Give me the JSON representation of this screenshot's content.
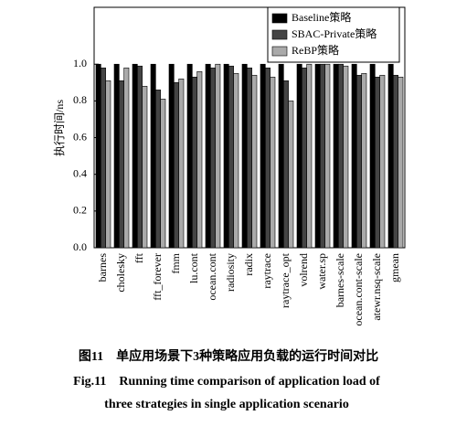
{
  "chart_data": {
    "type": "bar",
    "y_label": "执行时间/ns",
    "categories": [
      "barnes",
      "cholesky",
      "fft",
      "fft_forever",
      "fmm",
      "lu.cont",
      "ocean.cont",
      "radiosity",
      "radix",
      "raytrace",
      "raytrace_opt",
      "volrend",
      "water.sp",
      "barnes-scale",
      "ocean.cont-scale",
      "atewr.nsq-scale",
      "gmean"
    ],
    "series": [
      {
        "name": "Baseline策略",
        "color": "#000000",
        "values": [
          1,
          1,
          1,
          1,
          1,
          1,
          1,
          1,
          1,
          1,
          1,
          1,
          1,
          1,
          1,
          1,
          1
        ]
      },
      {
        "name": "SBAC-Private策略",
        "color": "#444444",
        "values": [
          0.98,
          0.91,
          0.99,
          0.86,
          0.9,
          0.93,
          0.98,
          0.99,
          0.98,
          0.98,
          0.91,
          0.98,
          1,
          1,
          0.94,
          0.93,
          0.94
        ]
      },
      {
        "name": "ReBP策略",
        "color": "#aaaaaa",
        "values": [
          0.91,
          0.98,
          0.88,
          0.81,
          0.92,
          0.96,
          1,
          0.95,
          0.94,
          0.93,
          0.8,
          1,
          1,
          0.99,
          0.95,
          0.94,
          0.93
        ]
      }
    ],
    "ylim": [
      0,
      1.31
    ],
    "yticks": [
      {
        "value": 0,
        "label": "0.0"
      },
      0.2,
      0.4,
      0.6,
      0.8,
      {
        "value": 1,
        "label": "1.0"
      }
    ],
    "legend": "upper right",
    "caption": {
      "zh": "图11　单应用场景下3种策略应用负载的运行时间对比",
      "en": [
        "Fig.11　Running time comparison of application load of",
        "three strategies in single application scenario"
      ]
    }
  }
}
